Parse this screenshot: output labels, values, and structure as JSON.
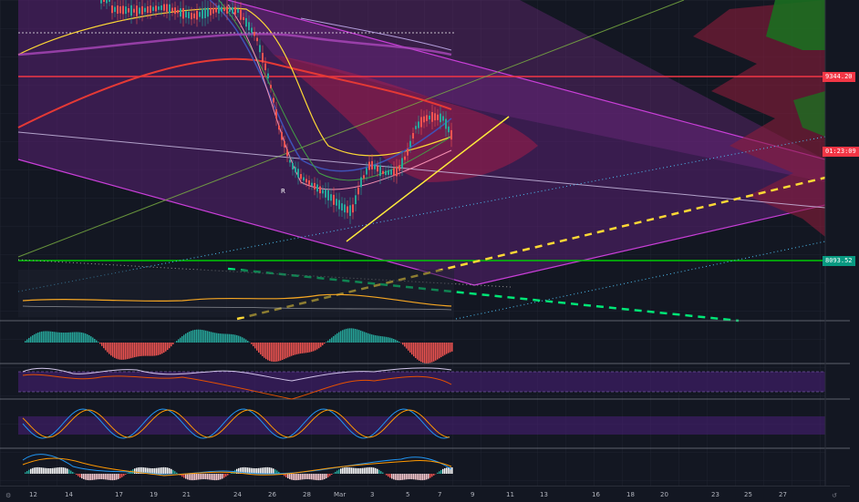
{
  "price_labels": [
    {
      "text": "9344.20",
      "color": "#f23645"
    },
    {
      "text": "01:23:09",
      "color": "#f23645"
    },
    {
      "text": "8093.52",
      "color": "#089981"
    }
  ],
  "date_labels": [
    "12",
    "14",
    "17",
    "19",
    "21",
    "24",
    "26",
    "28",
    "Mar",
    "3",
    "5",
    "7",
    "9",
    "11",
    "13",
    "16",
    "18",
    "20",
    "23",
    "25",
    "27"
  ],
  "markers": {
    "r_label": "R"
  },
  "colors": {
    "background": "#131722",
    "channel": "#c93fd8",
    "bull": "#26a69a",
    "bear": "#ef5350",
    "support": "#00c805",
    "resistance": "#f23645",
    "trend_yellow": "#ffeb3b"
  },
  "icons": {
    "settings": "gear-icon",
    "reset": "reset-icon"
  }
}
